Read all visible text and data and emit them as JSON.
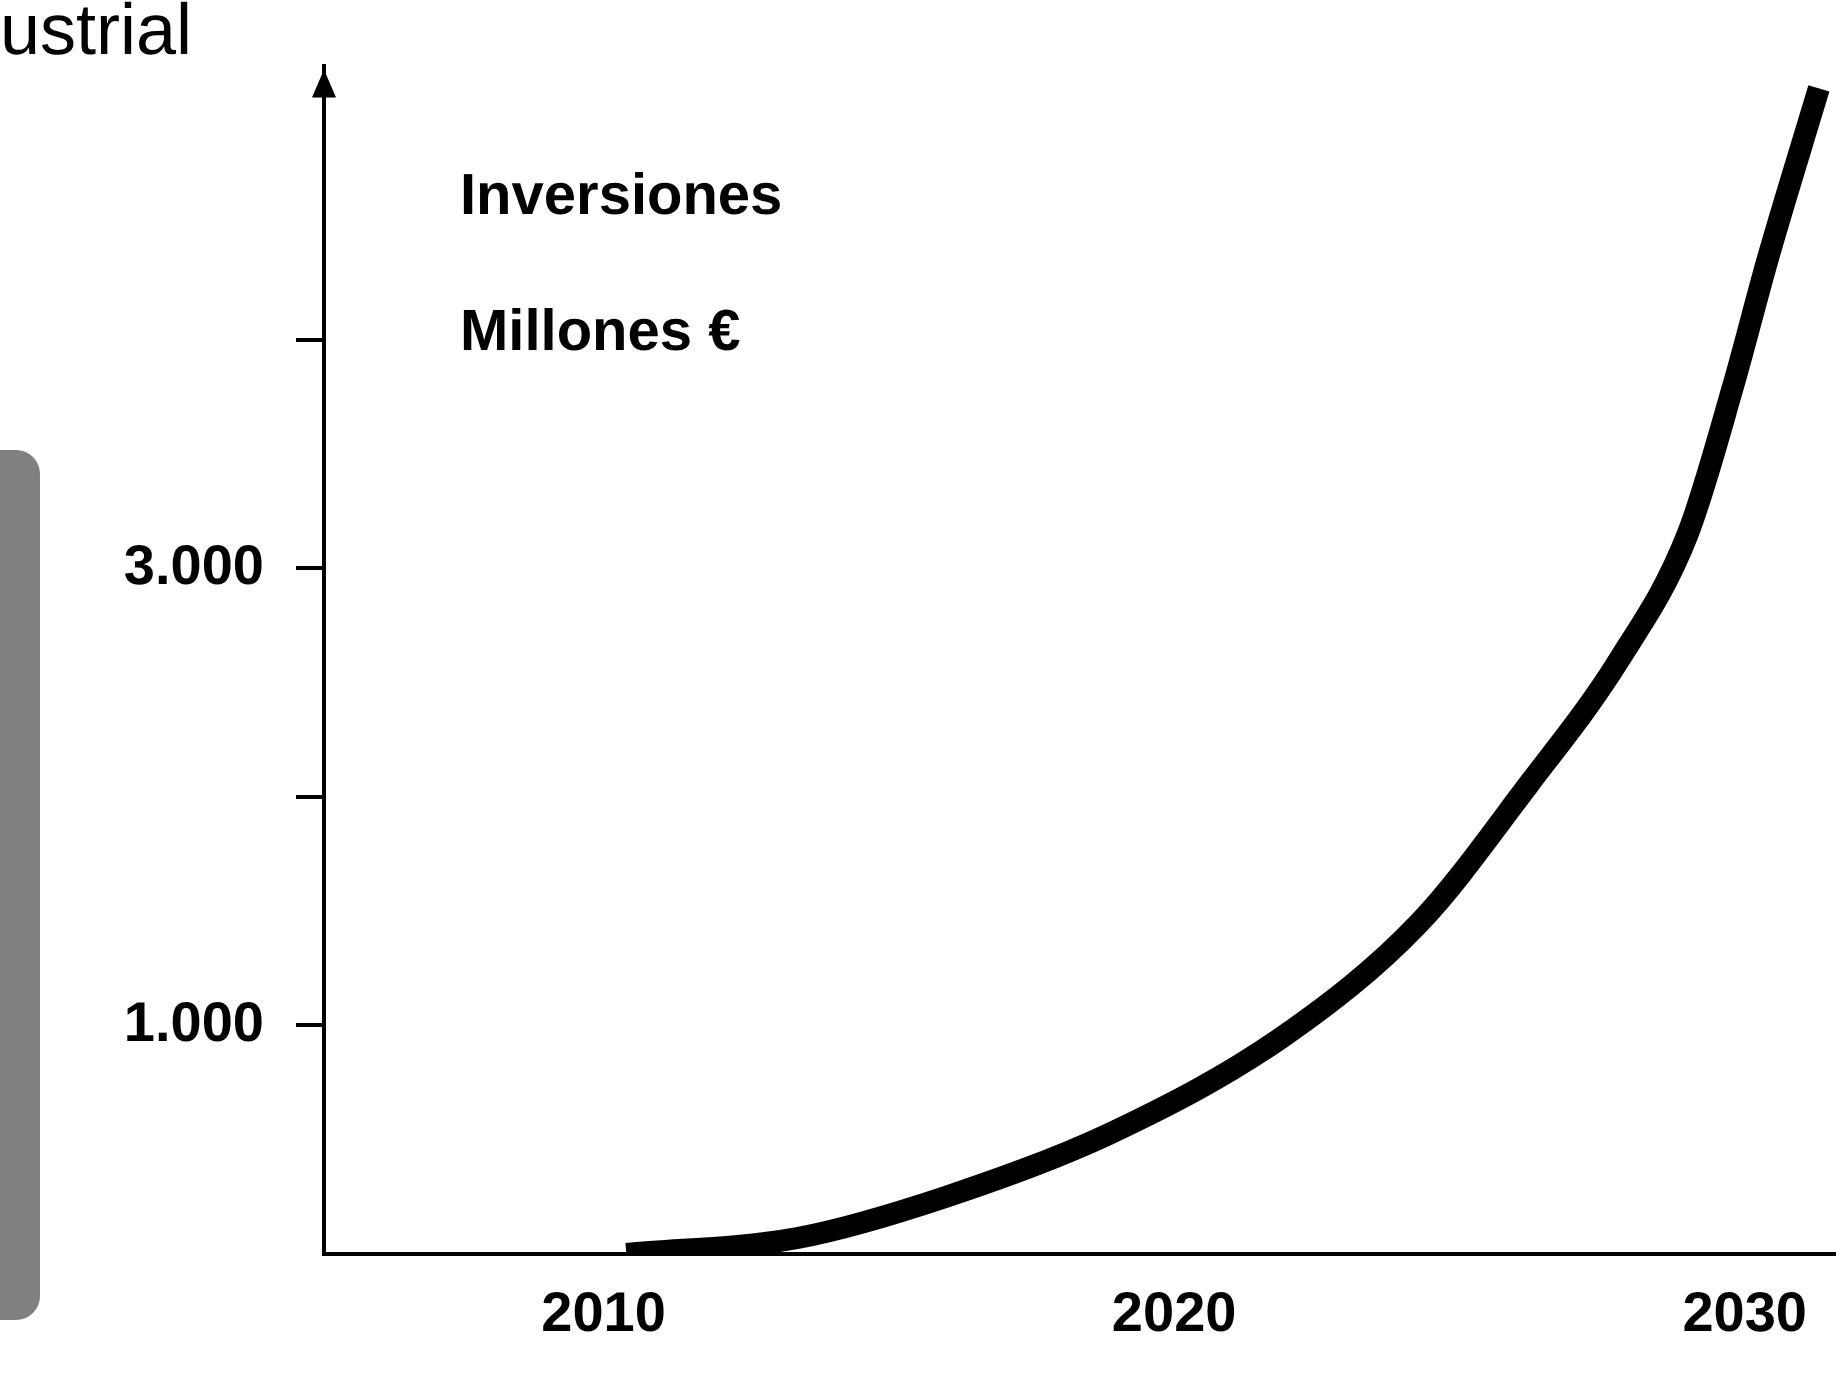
{
  "chart_data": {
    "type": "line",
    "title": "ustrial",
    "ylabel": "Inversiones\nMillones €",
    "x": [
      2010.4,
      2013.4,
      2016,
      2018.9,
      2021.9,
      2024.3,
      2026.2,
      2027.8,
      2029,
      2029.8,
      2030.4,
      2031.3
    ],
    "series": [
      {
        "color": "#000000",
        "values": [
          0,
          70,
          250,
          530,
          950,
          1450,
          2050,
          2600,
          3150,
          3800,
          4350,
          5100
        ]
      }
    ],
    "xlim": [
      2005.1,
      2031.6
    ],
    "xticks": [
      2010,
      2020,
      2030
    ],
    "ylim": [
      0,
      5200
    ],
    "yticks": [
      {
        "value": 1000,
        "label": "1.000"
      },
      {
        "value": 2000,
        "label": null
      },
      {
        "value": 3000,
        "label": "3.000"
      },
      {
        "value": 4000,
        "label": null
      }
    ],
    "grid": false,
    "legend": false,
    "marker": "none",
    "line_style": "solid"
  }
}
